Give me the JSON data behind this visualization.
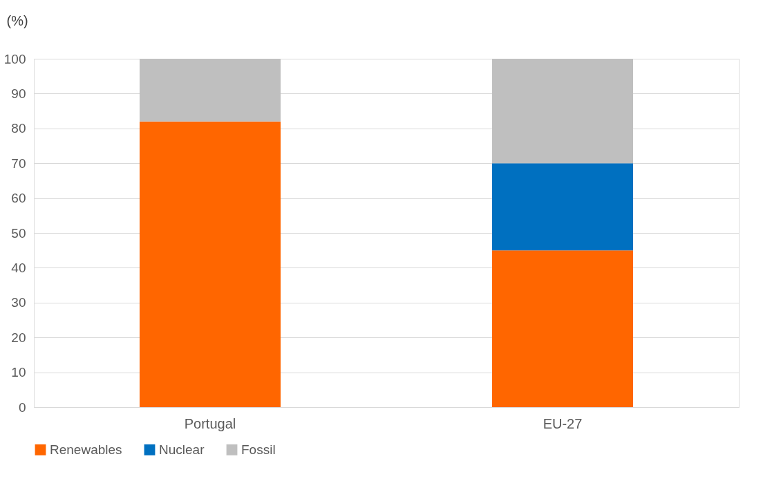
{
  "chart_data": {
    "type": "bar",
    "stacked": true,
    "ylabel": "(%)",
    "categories": [
      "Portugal",
      "EU-27"
    ],
    "series": [
      {
        "name": "Renewables",
        "color": "#ff6600",
        "values": [
          82,
          45
        ]
      },
      {
        "name": "Nuclear",
        "color": "#0070c0",
        "values": [
          null,
          25
        ]
      },
      {
        "name": "Fossil",
        "color": "#bfbfbf",
        "values": [
          18,
          30
        ]
      }
    ],
    "ylim": [
      0,
      100
    ],
    "yticks": [
      0,
      10,
      20,
      30,
      40,
      50,
      60,
      70,
      80,
      90,
      100
    ],
    "grid": "y",
    "legend": "bottom"
  }
}
